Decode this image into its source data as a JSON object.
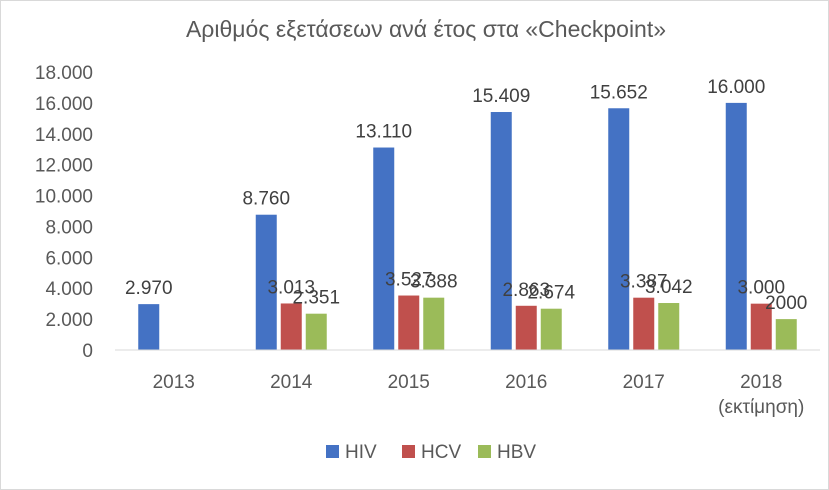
{
  "chart_data": {
    "type": "bar",
    "title": "Αριθμός εξετάσεων ανά έτος στα «Checkpoint»",
    "categories": [
      [
        "2013"
      ],
      [
        "2014"
      ],
      [
        "2015"
      ],
      [
        "2016"
      ],
      [
        "2017"
      ],
      [
        "2018",
        "(εκτίμηση)"
      ]
    ],
    "ylim": [
      0,
      18000
    ],
    "yticks": [
      0,
      2000,
      4000,
      6000,
      8000,
      10000,
      12000,
      14000,
      16000,
      18000
    ],
    "ytick_labels": [
      "0",
      "2.000",
      "4.000",
      "6.000",
      "8.000",
      "10.000",
      "12.000",
      "14.000",
      "16.000",
      "18.000"
    ],
    "grid": false,
    "legend_position": "bottom",
    "series": [
      {
        "name": "HIV",
        "color": "#4472c4",
        "values": [
          2970,
          8760,
          13110,
          15409,
          15652,
          16000
        ],
        "labels": [
          "2.970",
          "8.760",
          "13.110",
          "15.409",
          "15.652",
          "16.000"
        ]
      },
      {
        "name": "HCV",
        "color": "#c0504d",
        "values": [
          null,
          3013,
          3527,
          2863,
          3387,
          3000
        ],
        "labels": [
          null,
          "3.013",
          "3.527",
          "2.863",
          "3.387",
          "3.000"
        ]
      },
      {
        "name": "HBV",
        "color": "#9bbb59",
        "values": [
          null,
          2351,
          3388,
          2674,
          3042,
          2000
        ],
        "labels": [
          null,
          "2.351",
          "3.388",
          "2.674",
          "3.042",
          "2000"
        ]
      }
    ]
  }
}
